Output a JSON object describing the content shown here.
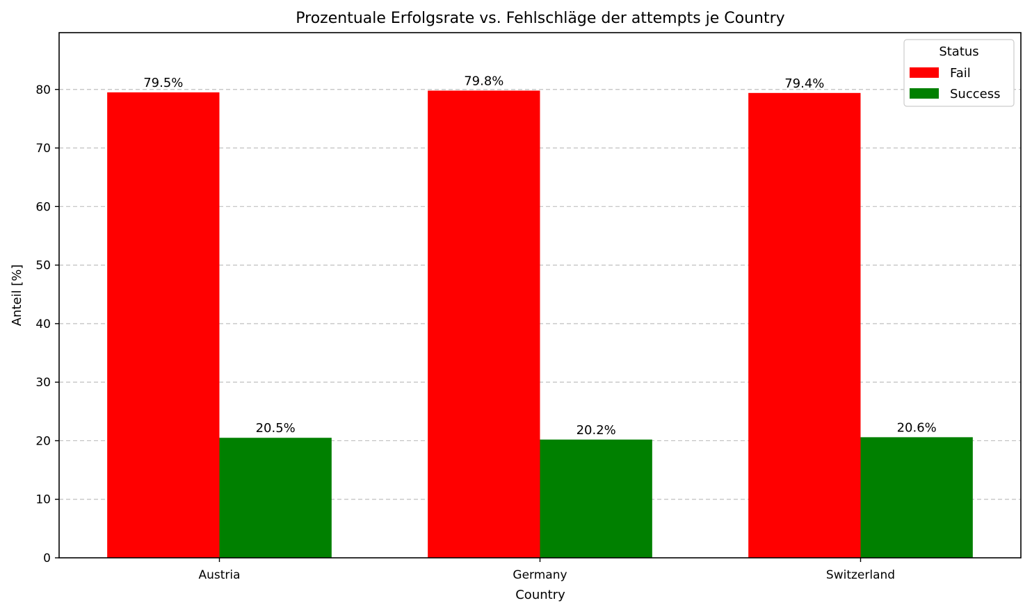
{
  "chart_data": {
    "type": "bar",
    "title": "Prozentuale Erfolgsrate vs. Fehlschläge der attempts je Country",
    "xlabel": "Country",
    "ylabel": "Anteil [%]",
    "categories": [
      "Austria",
      "Germany",
      "Switzerland"
    ],
    "series": [
      {
        "name": "Fail",
        "color": "#ff0000",
        "values": [
          79.5,
          79.8,
          79.4
        ],
        "labels": [
          "79.5%",
          "79.8%",
          "79.4%"
        ]
      },
      {
        "name": "Success",
        "color": "#008000",
        "values": [
          20.5,
          20.2,
          20.6
        ],
        "labels": [
          "20.5%",
          "20.2%",
          "20.6%"
        ]
      }
    ],
    "ylim": [
      0,
      89.7
    ],
    "yticks": [
      0,
      10,
      20,
      30,
      40,
      50,
      60,
      70,
      80
    ],
    "grid": "y-dashed",
    "legend": {
      "title": "Status",
      "placement": "top-right"
    }
  }
}
